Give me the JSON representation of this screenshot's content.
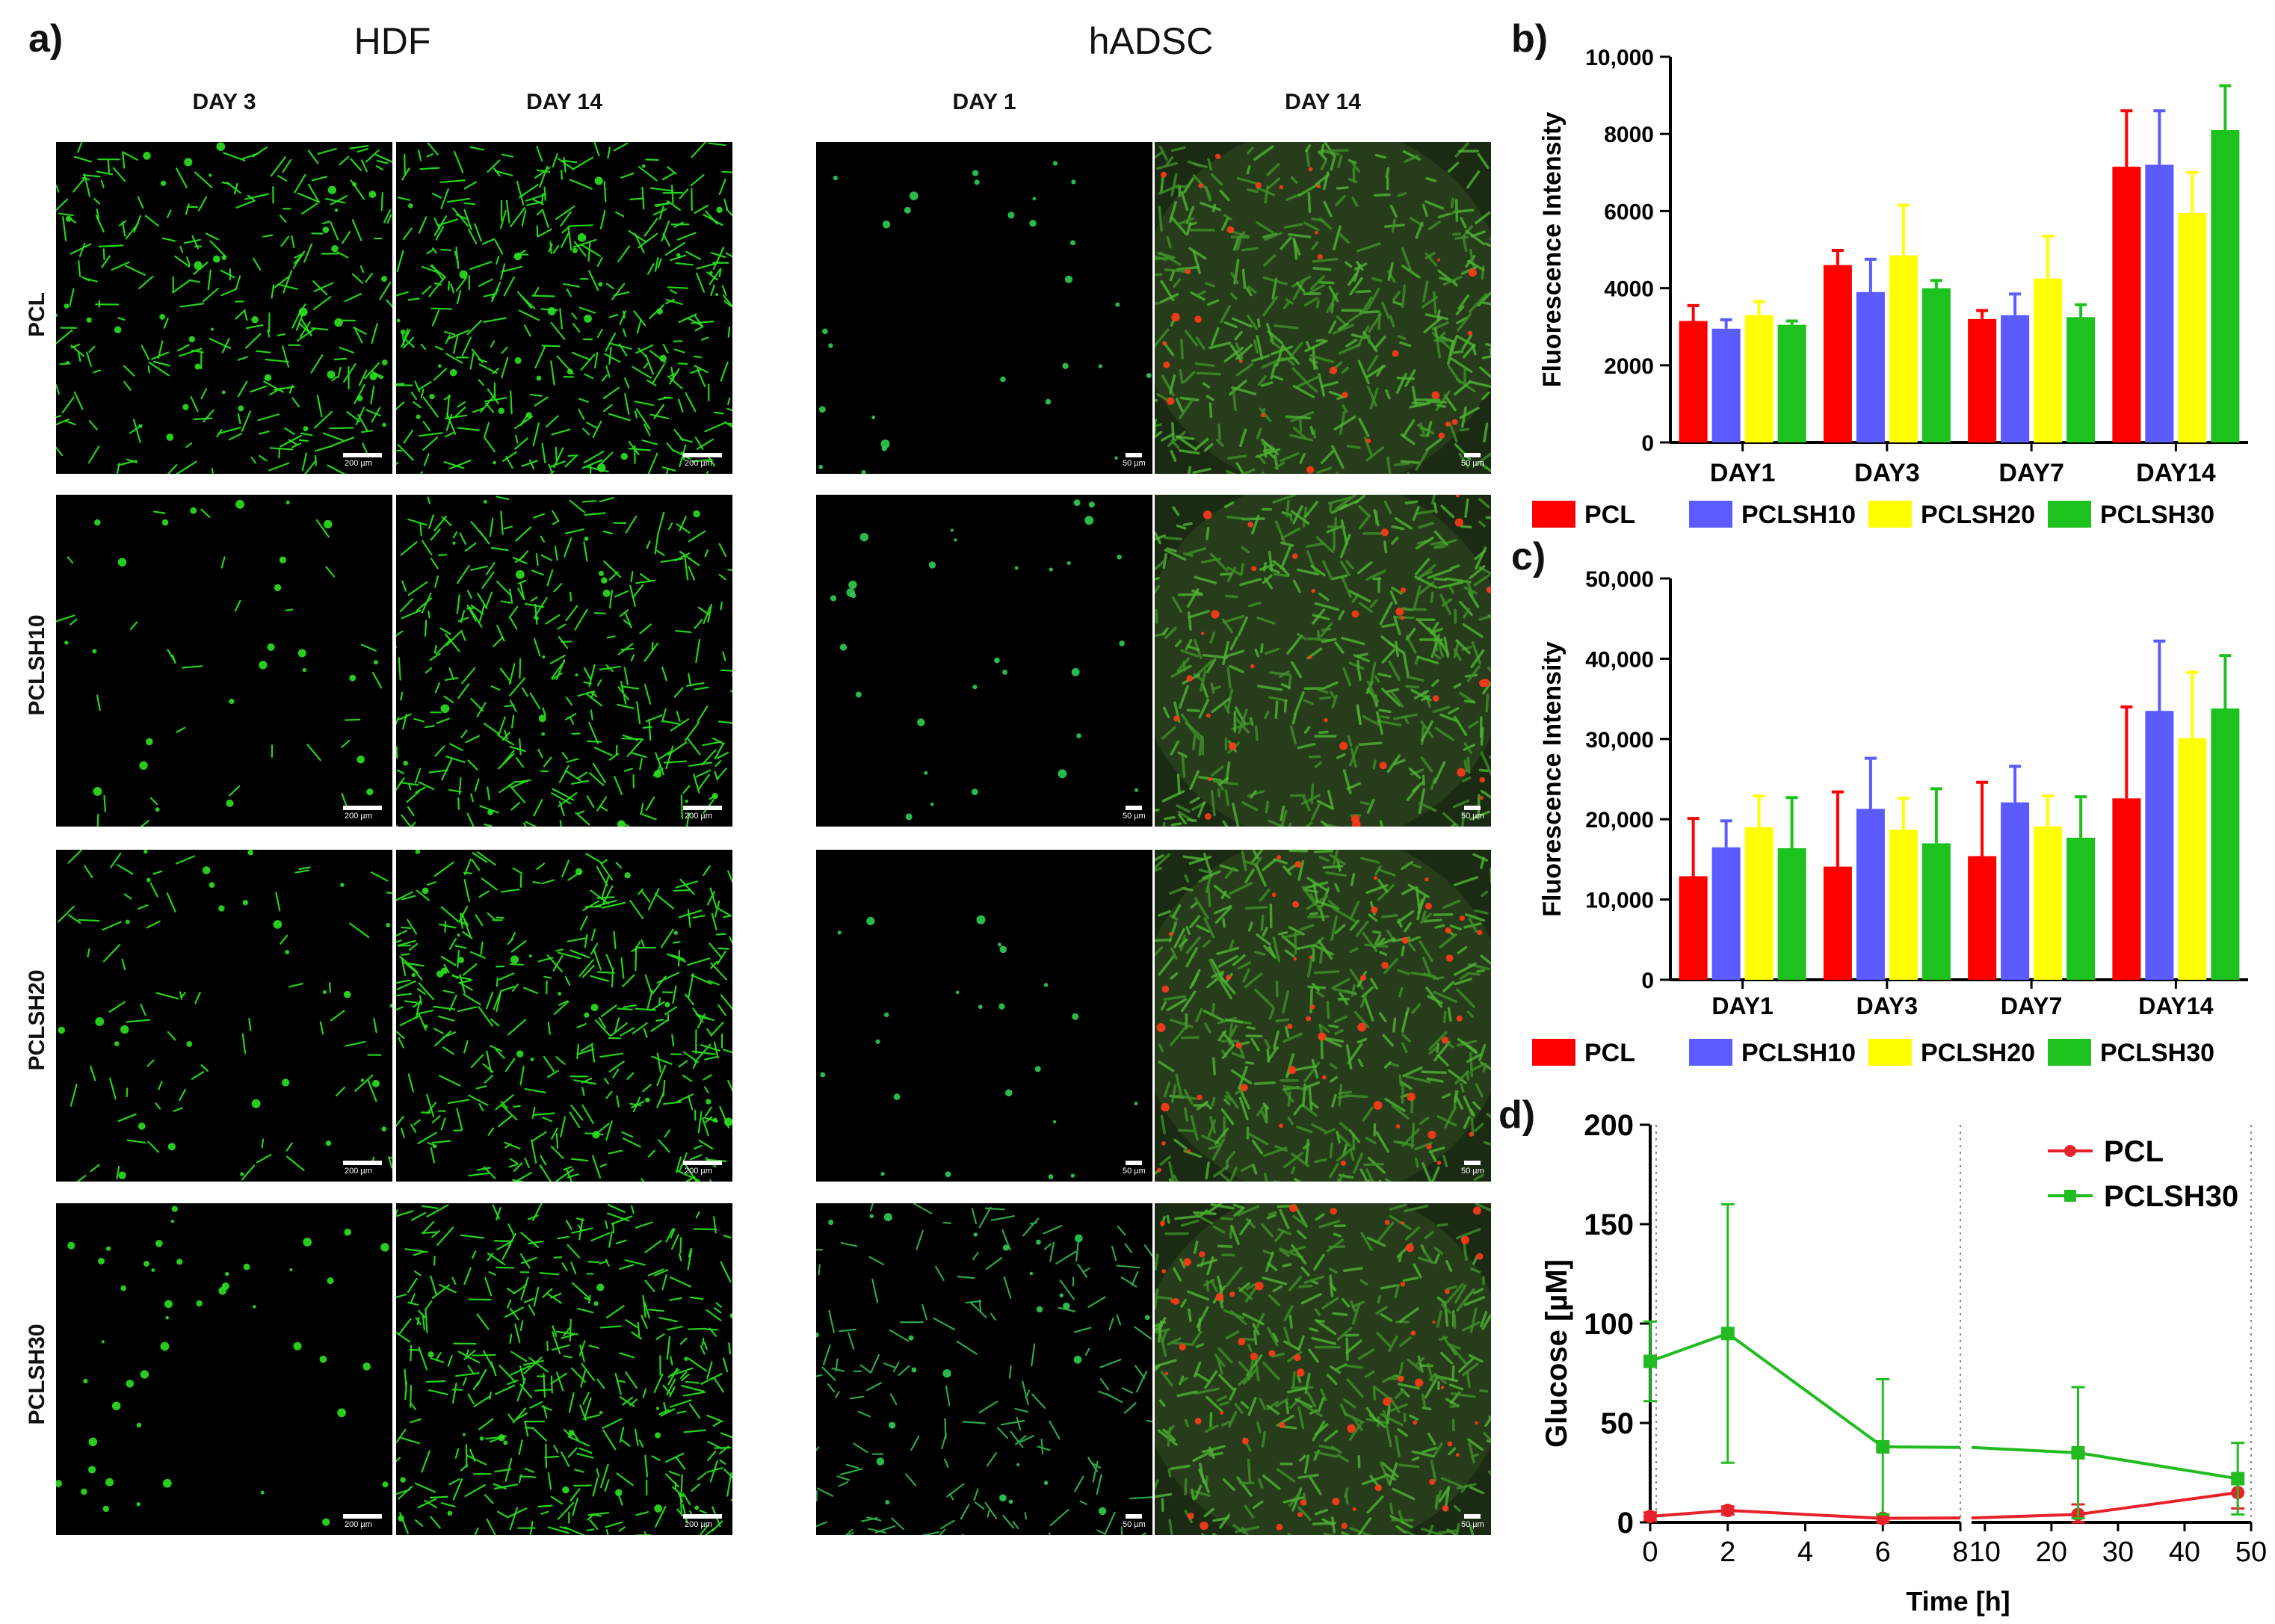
{
  "panel_a": {
    "letter": "a)",
    "groups": [
      {
        "title": "HDF",
        "columns": [
          "DAY 3",
          "DAY 14"
        ],
        "scale_label": "200 µm"
      },
      {
        "title": "hADSC",
        "columns": [
          "DAY 1",
          "DAY 14"
        ],
        "scale_label": "50 µm"
      }
    ],
    "rows": [
      "PCL",
      "PCLSH10",
      "PCLSH20",
      "PCLSH30"
    ]
  },
  "panel_letters": {
    "b": "b)",
    "c": "c)",
    "d": "d)"
  },
  "chart_data": [
    {
      "id": "b",
      "type": "bar",
      "ylabel": "Fluorescence Intensity",
      "ylim": [
        0,
        10000
      ],
      "yticks": [
        "0",
        "2000",
        "4000",
        "6000",
        "8000",
        "10,000"
      ],
      "categories": [
        "DAY1",
        "DAY3",
        "DAY7",
        "DAY14"
      ],
      "error_bars": "upper",
      "series": [
        {
          "name": "PCL",
          "color": "#ff0000",
          "values": [
            3150,
            4600,
            3200,
            7150
          ],
          "errors": [
            400,
            380,
            220,
            1450
          ]
        },
        {
          "name": "PCLSH10",
          "color": "#5b5bff",
          "values": [
            2950,
            3900,
            3300,
            7200
          ],
          "errors": [
            230,
            850,
            550,
            1400
          ]
        },
        {
          "name": "PCLSH20",
          "color": "#ffff00",
          "values": [
            3300,
            4850,
            4250,
            5950
          ],
          "errors": [
            350,
            1300,
            1100,
            1050
          ]
        },
        {
          "name": "PCLSH30",
          "color": "#1ec21e",
          "values": [
            3050,
            4000,
            3250,
            8100
          ],
          "errors": [
            100,
            200,
            320,
            1150
          ]
        }
      ],
      "legend": "bottom"
    },
    {
      "id": "c",
      "type": "bar",
      "ylabel": "Fluorescence Intensity",
      "ylim": [
        0,
        50000
      ],
      "yticks": [
        "0",
        "10,000",
        "20,000",
        "30,000",
        "40,000",
        "50,000"
      ],
      "categories": [
        "DAY1",
        "DAY3",
        "DAY7",
        "DAY14"
      ],
      "error_bars": "upper",
      "series": [
        {
          "name": "PCL",
          "color": "#ff0000",
          "values": [
            12900,
            14100,
            15400,
            22600
          ],
          "errors": [
            7200,
            9300,
            9200,
            11400
          ]
        },
        {
          "name": "PCLSH10",
          "color": "#5b5bff",
          "values": [
            16500,
            21300,
            22100,
            33500
          ],
          "errors": [
            3300,
            6300,
            4500,
            8700
          ]
        },
        {
          "name": "PCLSH20",
          "color": "#ffff00",
          "values": [
            19000,
            18700,
            19100,
            30100
          ],
          "errors": [
            3900,
            3900,
            3800,
            8200
          ]
        },
        {
          "name": "PCLSH30",
          "color": "#1ec21e",
          "values": [
            16400,
            17000,
            17700,
            33800
          ],
          "errors": [
            6300,
            6800,
            5100,
            6600
          ]
        }
      ],
      "legend": "bottom"
    },
    {
      "id": "d",
      "type": "line",
      "xlabel": "Time [h]",
      "ylabel": "Glucose [µM]",
      "ylim": [
        0,
        200
      ],
      "yticks": [
        "0",
        "50",
        "100",
        "150",
        "200"
      ],
      "x_axis_break": true,
      "xticks_left": [
        "0",
        "2",
        "4",
        "6",
        "8"
      ],
      "xticks_right": [
        "10",
        "20",
        "30",
        "40",
        "50"
      ],
      "series": [
        {
          "name": "PCL",
          "color": "#e8222a",
          "marker": "circle",
          "x": [
            0,
            2,
            6,
            24,
            48
          ],
          "y": [
            3,
            6,
            2,
            4,
            15
          ],
          "errors": [
            2,
            2,
            2,
            5,
            8
          ]
        },
        {
          "name": "PCLSH30",
          "color": "#22bb22",
          "marker": "square",
          "x": [
            0,
            2,
            6,
            24,
            48
          ],
          "y": [
            81,
            95,
            38,
            35,
            22
          ],
          "errors": [
            20,
            65,
            34,
            33,
            18
          ]
        }
      ],
      "legend": "top-right"
    }
  ]
}
